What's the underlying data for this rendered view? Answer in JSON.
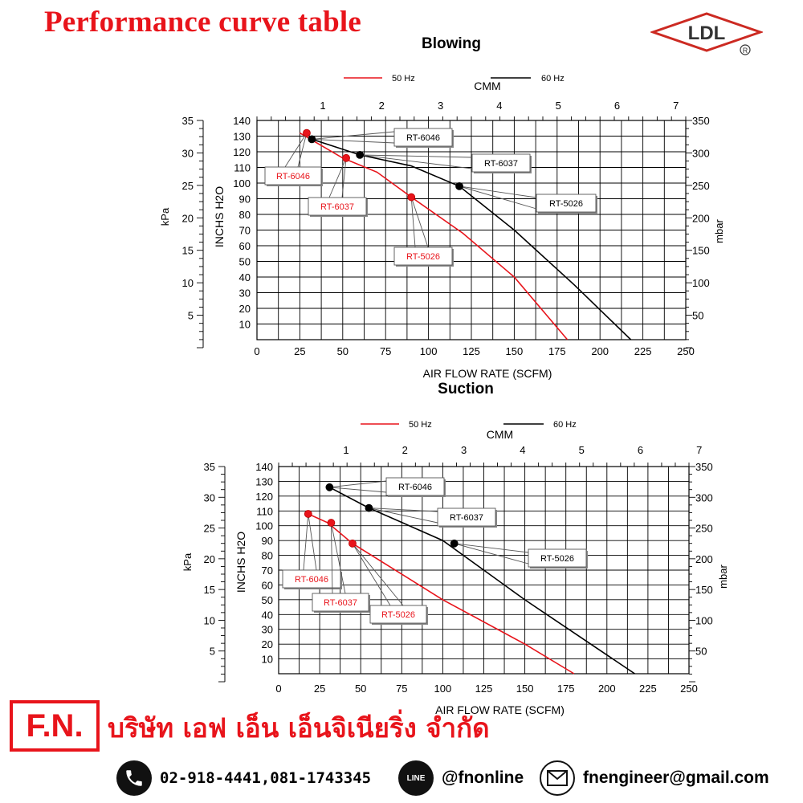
{
  "page": {
    "title": "Performance curve table"
  },
  "logo": {
    "text": "LDL",
    "mark": "R"
  },
  "chart_data": [
    {
      "type": "line",
      "title": "Blowing",
      "legend": {
        "placement": "top",
        "items": [
          {
            "label": "50 Hz",
            "color": "#e8141b"
          },
          {
            "label": "60 Hz",
            "color": "#000000"
          }
        ]
      },
      "xlabel": "AIR FLOW RATE (SCFM)",
      "x2label": "CMM",
      "ylabel": "INCHS H2O",
      "y2label": "kPa",
      "y3label": "mbar",
      "xlim": [
        0,
        250
      ],
      "ylim": [
        0,
        140
      ],
      "x_ticks": [
        "0",
        "25",
        "50",
        "75",
        "100",
        "125",
        "150",
        "175",
        "200",
        "225",
        "250"
      ],
      "x2_ticks": [
        "1",
        "2",
        "3",
        "4",
        "5",
        "6",
        "7"
      ],
      "y_ticks": [
        "10",
        "20",
        "30",
        "40",
        "50",
        "60",
        "70",
        "80",
        "90",
        "100",
        "110",
        "120",
        "130",
        "140"
      ],
      "kpa_ticks": [
        "5",
        "10",
        "15",
        "20",
        "25",
        "30",
        "35"
      ],
      "mbar_ticks": [
        "50",
        "100",
        "150",
        "200",
        "250",
        "300",
        "350"
      ],
      "grid": true,
      "series": [
        {
          "name": "50 Hz",
          "color": "#e8141b",
          "x": [
            25,
            50,
            70,
            90,
            120,
            150,
            181
          ],
          "y": [
            132,
            116,
            107,
            91,
            68,
            40,
            0
          ]
        },
        {
          "name": "60 Hz",
          "color": "#000000",
          "x": [
            32,
            60,
            90,
            118,
            150,
            185,
            218
          ],
          "y": [
            128,
            118,
            111,
            98,
            70,
            35,
            0
          ]
        }
      ],
      "markers": [
        {
          "series": "50 Hz",
          "label": "RT-6046",
          "x": 29,
          "y": 132
        },
        {
          "series": "50 Hz",
          "label": "RT-6037",
          "x": 52,
          "y": 116
        },
        {
          "series": "50 Hz",
          "label": "RT-5026",
          "x": 90,
          "y": 91
        },
        {
          "series": "60 Hz",
          "label": "RT-6046",
          "x": 32,
          "y": 128
        },
        {
          "series": "60 Hz",
          "label": "RT-6037",
          "x": 60,
          "y": 118
        },
        {
          "series": "60 Hz",
          "label": "RT-5026",
          "x": 118,
          "y": 98
        }
      ]
    },
    {
      "type": "line",
      "title": "Suction",
      "legend": {
        "placement": "top",
        "items": [
          {
            "label": "50 Hz",
            "color": "#e8141b"
          },
          {
            "label": "60 Hz",
            "color": "#000000"
          }
        ]
      },
      "xlabel": "AIR FLOW RATE (SCFM)",
      "x2label": "CMM",
      "ylabel": "INCHS H2O",
      "y2label": "kPa",
      "y3label": "mbar",
      "xlim": [
        0,
        250
      ],
      "ylim": [
        0,
        140
      ],
      "x_ticks": [
        "0",
        "25",
        "50",
        "75",
        "100",
        "125",
        "150",
        "175",
        "200",
        "225",
        "250"
      ],
      "x2_ticks": [
        "1",
        "2",
        "3",
        "4",
        "5",
        "6",
        "7"
      ],
      "y_ticks": [
        "10",
        "20",
        "30",
        "40",
        "50",
        "60",
        "70",
        "80",
        "90",
        "100",
        "110",
        "120",
        "130",
        "140"
      ],
      "kpa_ticks": [
        "5",
        "10",
        "15",
        "20",
        "25",
        "30",
        "35"
      ],
      "mbar_ticks": [
        "50",
        "100",
        "150",
        "200",
        "250",
        "300",
        "350"
      ],
      "grid": true,
      "series": [
        {
          "name": "50 Hz",
          "color": "#e8141b",
          "x": [
            18,
            30,
            45,
            100,
            150,
            180
          ],
          "y": [
            108,
            102,
            88,
            50,
            20,
            0
          ]
        },
        {
          "name": "60 Hz",
          "color": "#000000",
          "x": [
            31,
            55,
            100,
            150,
            217
          ],
          "y": [
            126,
            112,
            90,
            50,
            0
          ]
        }
      ],
      "markers": [
        {
          "series": "50 Hz",
          "label": "RT-6046",
          "x": 18,
          "y": 108
        },
        {
          "series": "50 Hz",
          "label": "RT-6037",
          "x": 32,
          "y": 102
        },
        {
          "series": "50 Hz",
          "label": "RT-5026",
          "x": 45,
          "y": 88
        },
        {
          "series": "60 Hz",
          "label": "RT-6046",
          "x": 31,
          "y": 126
        },
        {
          "series": "60 Hz",
          "label": "RT-6037",
          "x": 55,
          "y": 112
        },
        {
          "series": "60 Hz",
          "label": "RT-5026",
          "x": 107,
          "y": 88
        }
      ]
    }
  ],
  "footer": {
    "brand": "F.N.",
    "company": "บริษัท เอฟ เอ็น เอ็นจิเนียริ่ง จำกัด",
    "phone": "02-918-4441,081-1743345",
    "line_badge": "LINE",
    "line_id": "@fnonline",
    "email": "fnengineer@gmail.com"
  }
}
